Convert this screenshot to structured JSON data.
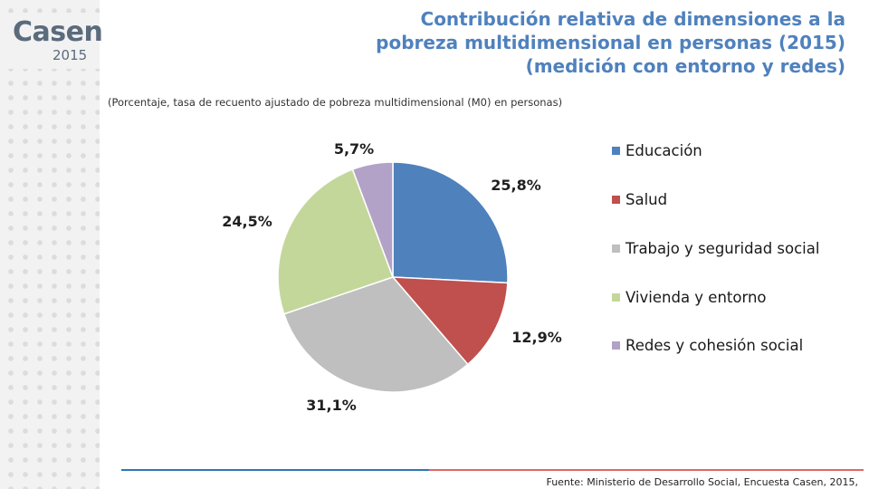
{
  "brand": {
    "name": "Casen",
    "year": "2015"
  },
  "title_lines": [
    "Contribución relativa de dimensiones a la",
    "pobreza multidimensional en personas (2015)",
    "(medición con entorno y redes)"
  ],
  "subtitle": "(Porcentaje, tasa de recuento ajustado de pobreza multidimensional  (M0) en personas)",
  "source": "Fuente: Ministerio de Desarrollo Social, Encuesta Casen, 2015,",
  "chart_data": {
    "type": "pie",
    "title": "Contribución relativa de dimensiones a la pobreza multidimensional en personas (2015) (medición con entorno y redes)",
    "legend_position": "right",
    "slices": [
      {
        "name": "Educación",
        "value": 25.8,
        "label": "25,8%",
        "color": "#4f81bd"
      },
      {
        "name": "Salud",
        "value": 12.9,
        "label": "12,9%",
        "color": "#c0504d"
      },
      {
        "name": "Trabajo y seguridad social",
        "value": 31.1,
        "label": "31,1%",
        "color": "#bfbfbf"
      },
      {
        "name": "Vivienda y entorno",
        "value": 24.5,
        "label": "24,5%",
        "color": "#c4d79b"
      },
      {
        "name": "Redes y cohesión social",
        "value": 5.7,
        "label": "5,7%",
        "color": "#b3a2c7"
      }
    ]
  }
}
